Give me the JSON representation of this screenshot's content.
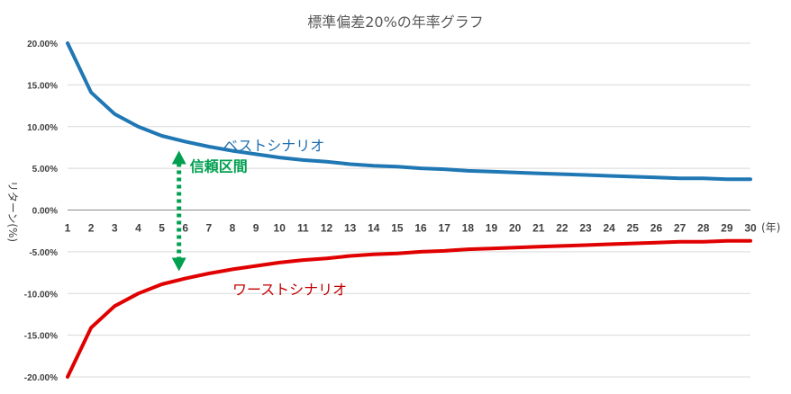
{
  "chart_data": {
    "type": "line",
    "title": "標準偏差20%の年率グラフ",
    "xlabel": "(年)",
    "ylabel": "リターン(%)",
    "ylim": [
      -0.2,
      0.2
    ],
    "y_ticks": [
      "20.00%",
      "15.00%",
      "10.00%",
      "5.00%",
      "0.00%",
      "-5.00%",
      "-10.00%",
      "-15.00%",
      "-20.00%"
    ],
    "grid": true,
    "x": [
      1,
      2,
      3,
      4,
      5,
      6,
      7,
      8,
      9,
      10,
      11,
      12,
      13,
      14,
      15,
      16,
      17,
      18,
      19,
      20,
      21,
      22,
      23,
      24,
      25,
      26,
      27,
      28,
      29,
      30
    ],
    "series": [
      {
        "name": "ベストシナリオ",
        "color": "#1f77b4",
        "values": [
          0.2,
          0.141,
          0.115,
          0.1,
          0.089,
          0.082,
          0.076,
          0.071,
          0.067,
          0.063,
          0.06,
          0.058,
          0.055,
          0.053,
          0.052,
          0.05,
          0.049,
          0.047,
          0.046,
          0.045,
          0.044,
          0.043,
          0.042,
          0.041,
          0.04,
          0.039,
          0.038,
          0.038,
          0.037,
          0.037
        ]
      },
      {
        "name": "ワーストシナリオ",
        "color": "#e00000",
        "values": [
          -0.2,
          -0.141,
          -0.115,
          -0.1,
          -0.089,
          -0.082,
          -0.076,
          -0.071,
          -0.067,
          -0.063,
          -0.06,
          -0.058,
          -0.055,
          -0.053,
          -0.052,
          -0.05,
          -0.049,
          -0.047,
          -0.046,
          -0.045,
          -0.044,
          -0.043,
          -0.042,
          -0.041,
          -0.04,
          -0.039,
          -0.038,
          -0.038,
          -0.037,
          -0.037
        ]
      }
    ],
    "annotations": [
      {
        "text": "信頼区間",
        "color": "#00a050",
        "style": "dotted double arrow",
        "between_series": [
          0,
          1
        ],
        "at_x": 6
      }
    ]
  }
}
